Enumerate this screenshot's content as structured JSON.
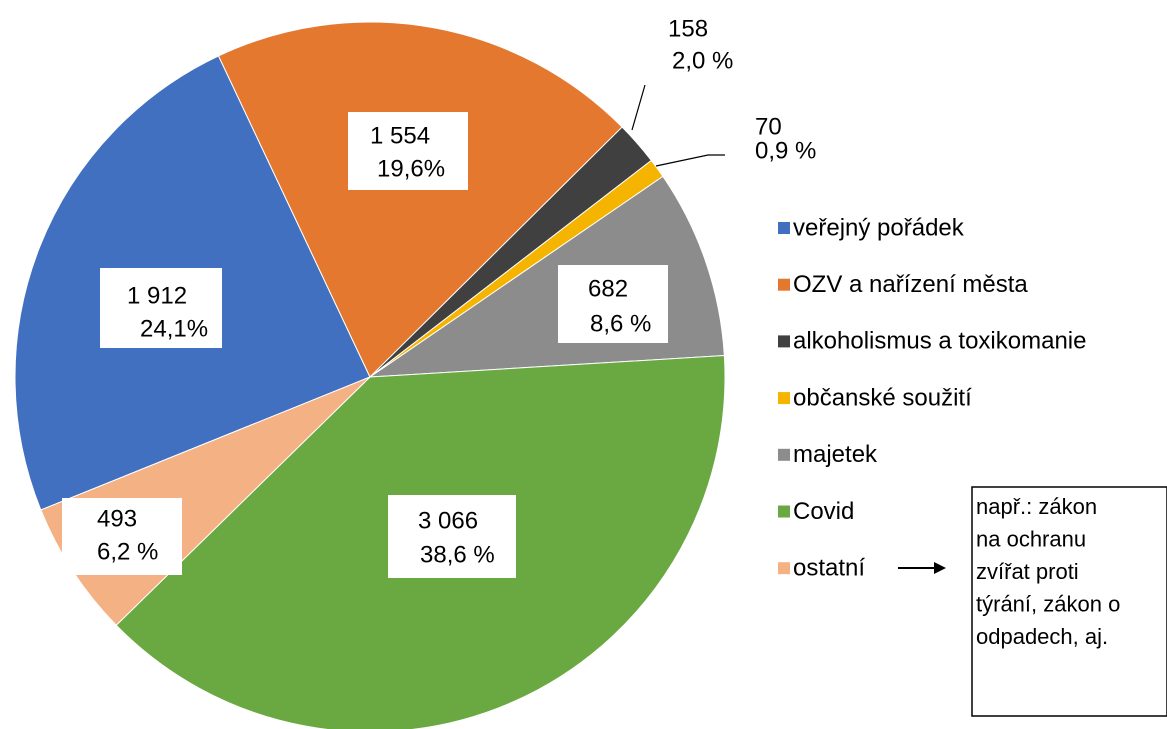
{
  "chart_data": {
    "type": "pie",
    "categories": [
      "veřejný pořádek",
      "OZV a nařízení města",
      "alkoholismus a toxikomanie",
      "občanské soužití",
      "majetek",
      "Covid",
      "ostatní"
    ],
    "values": [
      1912,
      1554,
      158,
      70,
      682,
      3066,
      493
    ],
    "value_labels": [
      "1 912",
      "1 554",
      "158",
      "70",
      "682",
      "3 066",
      "493"
    ],
    "percent_labels": [
      "24,1%",
      "19,6%",
      "2,0 %",
      "0,9 %",
      "8,6 %",
      "38,6 %",
      "6,2 %"
    ],
    "colors": [
      "#4170c0",
      "#e4782f",
      "#404040",
      "#f5b400",
      "#8c8c8c",
      "#6aa842",
      "#f4b183"
    ],
    "legend": "right",
    "annotation": [
      "např.:  zákon",
      "na ochranu",
      "zvířat proti",
      "týrání, zákon o",
      "odpadech, aj."
    ]
  }
}
